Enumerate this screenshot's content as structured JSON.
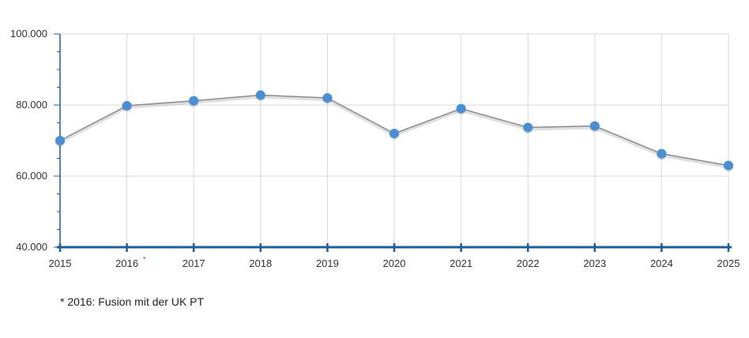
{
  "chart_data": {
    "type": "line",
    "categories": [
      "2015",
      "2016",
      "2017",
      "2018",
      "2019",
      "2020",
      "2021",
      "2022",
      "2023",
      "2024",
      "2025"
    ],
    "series": [
      {
        "values": [
          70000,
          79800,
          81200,
          82800,
          82000,
          72000,
          79000,
          73700,
          74100,
          66300,
          63000
        ]
      }
    ],
    "ylim": [
      40000,
      100000
    ],
    "y_ticks": [
      "40.000",
      "60.000",
      "80.000",
      "100.000"
    ],
    "x_annotations": {
      "2016": "*"
    },
    "grid": true,
    "colors": {
      "line": "#8c8c8c",
      "marker": "#4a8fd4",
      "axis": "#1f5d9c",
      "grid": "#d9d9d9",
      "asterisk": "#d9534f"
    }
  },
  "footnote": "* 2016: Fusion mit der UK PT"
}
